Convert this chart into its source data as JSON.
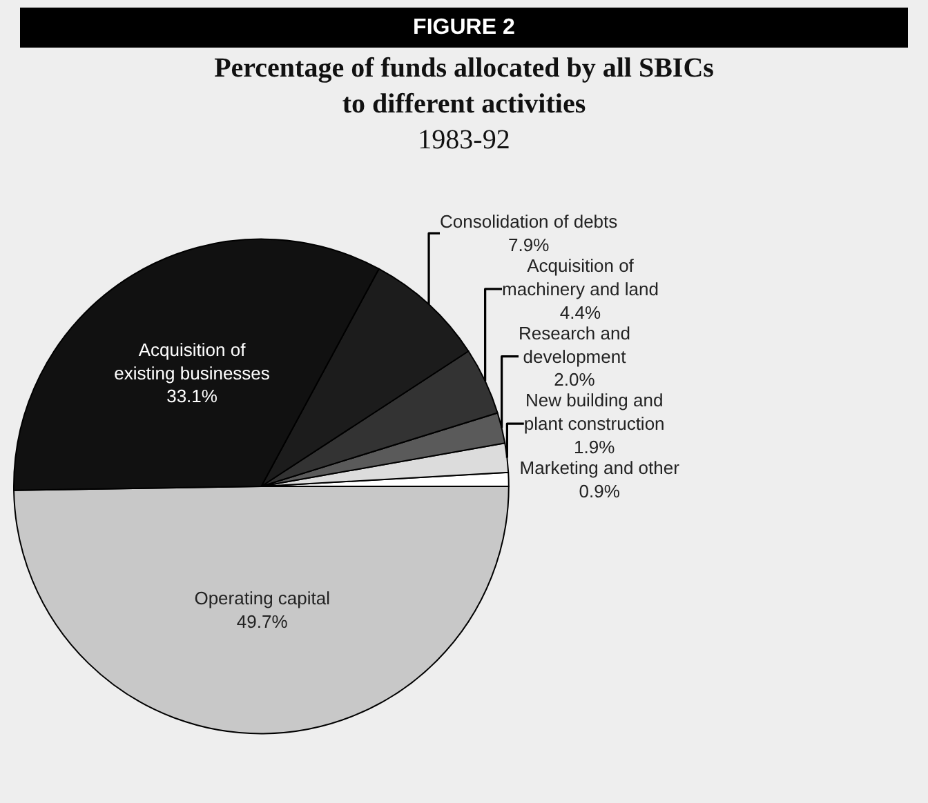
{
  "chart_data": {
    "type": "pie",
    "title": "Percentage of funds allocated by all SBICs\nto different activities",
    "subtitle": "1983-92",
    "annotations": [
      "FIGURE 2"
    ],
    "categories": [
      "Operating capital",
      "Marketing and other",
      "New building and\nplant construction",
      "Research and\ndevelopment",
      "Acquisition of\nmachinery and land",
      "Consolidation of debts",
      "Acquisition of\nexisting businesses"
    ],
    "values": [
      49.7,
      0.9,
      1.9,
      2.0,
      4.4,
      7.9,
      33.1
    ],
    "value_labels": [
      "49.7%",
      "0.9%",
      "1.9%",
      "2.0%",
      "4.4%",
      "7.9%",
      "33.1%"
    ],
    "colors": [
      "#c8c8c8",
      "#ffffff",
      "#dcdcdc",
      "#5a5a5a",
      "#333333",
      "#1c1c1c",
      "#111111"
    ],
    "legend": false
  }
}
